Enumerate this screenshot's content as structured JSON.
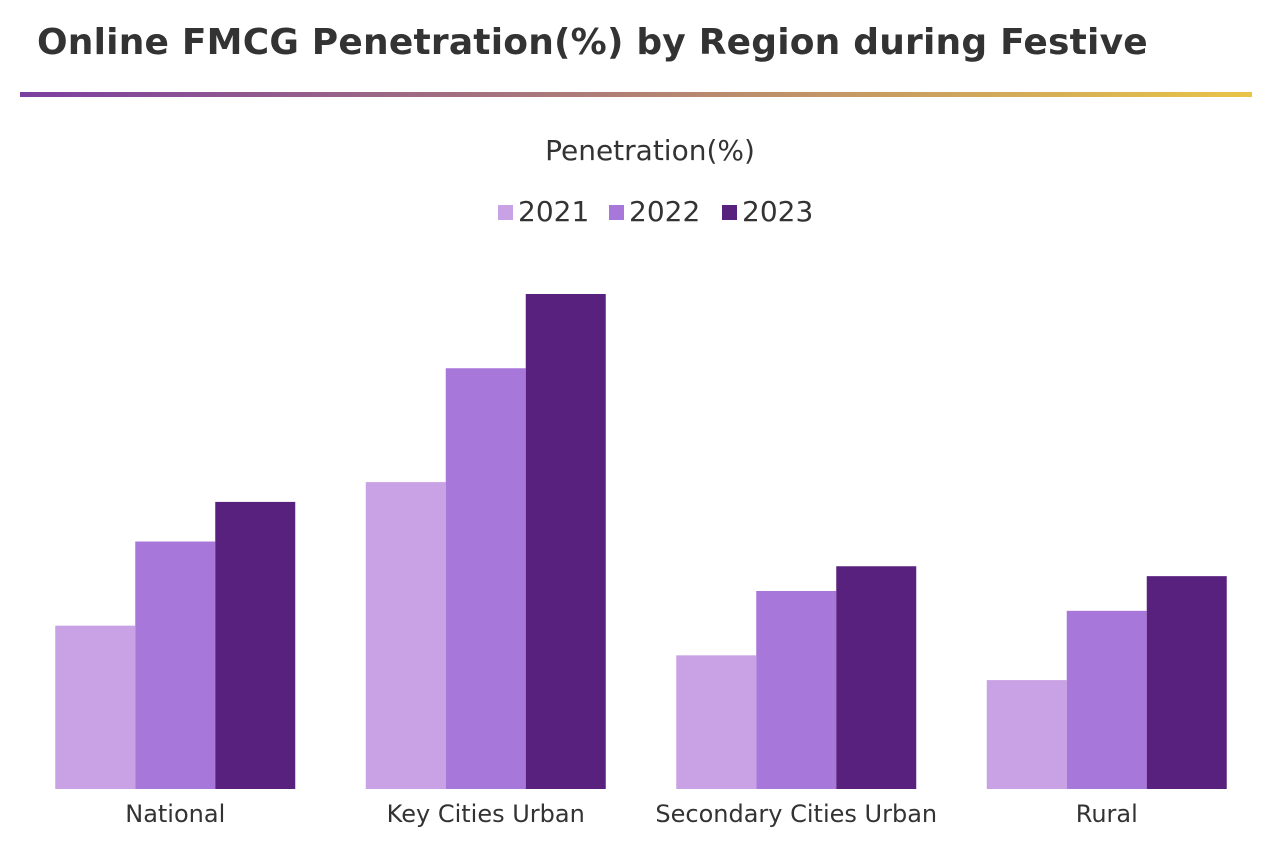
{
  "page": {
    "title": "Online FMCG Penetration(%) by Region during Festive"
  },
  "colors": {
    "title_rule_start": "#7B3FA0",
    "title_rule_end": "#E8C547"
  },
  "chart_data": {
    "type": "bar",
    "title": "Penetration(%)",
    "xlabel": "",
    "ylabel": "",
    "grid": false,
    "legend_position": "top-center",
    "ylim": [
      0,
      100
    ],
    "categories": [
      "National",
      "Key Cities Urban",
      "Secondary Cities Urban",
      "Rural"
    ],
    "series": [
      {
        "name": "2021",
        "color": "#C8A2E4",
        "values": [
          33,
          62,
          27,
          22
        ]
      },
      {
        "name": "2022",
        "color": "#A877DA",
        "values": [
          50,
          85,
          40,
          36
        ]
      },
      {
        "name": "2023",
        "color": "#58217E",
        "values": [
          58,
          100,
          45,
          43
        ]
      }
    ]
  }
}
